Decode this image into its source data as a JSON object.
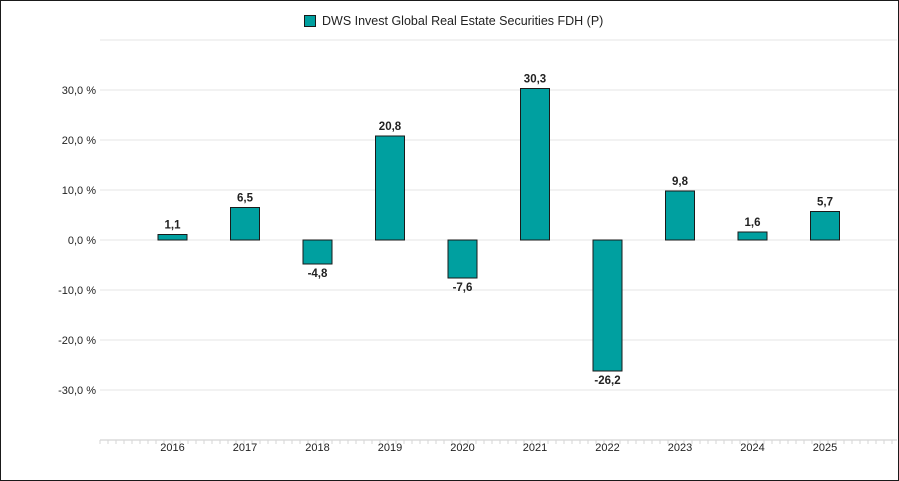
{
  "chart_data": {
    "type": "bar",
    "legend": [
      "DWS Invest Global Real Estate Securities FDH (P)"
    ],
    "categories": [
      "2016",
      "2017",
      "2018",
      "2019",
      "2020",
      "2021",
      "2022",
      "2023",
      "2024",
      "2025"
    ],
    "series": [
      {
        "name": "DWS Invest Global Real Estate Securities FDH (P)",
        "values": [
          1.1,
          6.5,
          -4.8,
          20.8,
          -7.6,
          30.3,
          -26.2,
          9.8,
          1.6,
          5.7
        ],
        "labels": [
          "1,1",
          "6,5",
          "-4,8",
          "20,8",
          "-7,6",
          "30,3",
          "-26,2",
          "9,8",
          "1,6",
          "5,7"
        ],
        "color": "#00a0a0"
      }
    ],
    "y_ticks": [
      30,
      20,
      10,
      0,
      -10,
      -20,
      -30
    ],
    "y_tick_labels": [
      "30,0 %",
      "20,0 %",
      "10,0 %",
      "0,0 %",
      "-10,0 %",
      "-20,0 %",
      "-30,0 %"
    ],
    "ylim": [
      -40,
      40
    ],
    "grid": true,
    "legend_position": "top-center"
  }
}
